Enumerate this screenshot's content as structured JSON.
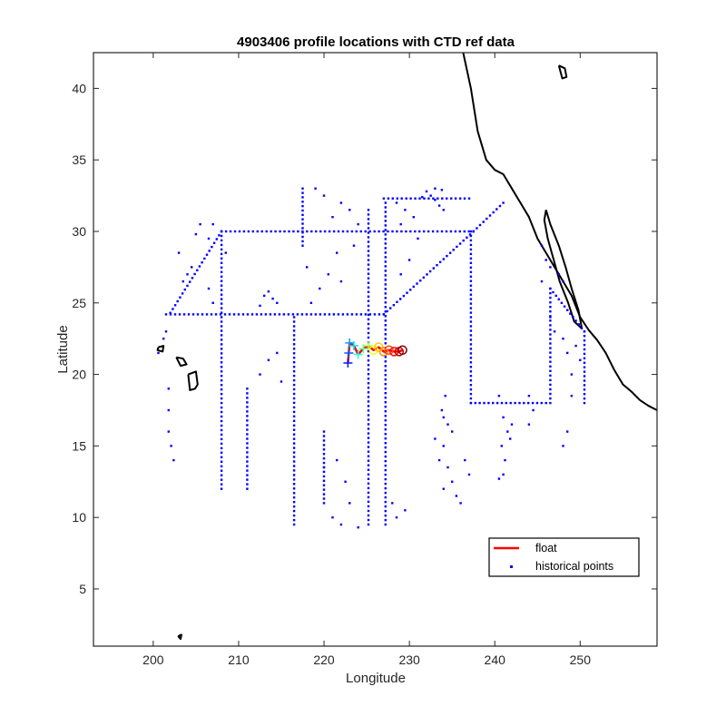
{
  "chart_data": {
    "type": "scatter",
    "title": "4903406 profile locations with CTD ref data",
    "xlabel": "Longitude",
    "ylabel": "Latitude",
    "xlim": [
      193,
      259
    ],
    "ylim": [
      1,
      42.5
    ],
    "xticks": [
      200,
      210,
      220,
      230,
      240,
      250
    ],
    "yticks": [
      5,
      10,
      15,
      20,
      25,
      30,
      35,
      40
    ],
    "grid": false,
    "legend_position": "bottom-right",
    "legend": [
      {
        "label": "float",
        "style": "line",
        "color": "#ff0000"
      },
      {
        "label": "historical points",
        "style": "dot",
        "color": "#0000ff"
      }
    ],
    "colors": {
      "float": "#ff0000",
      "historical": "#0000ff",
      "coast": "#000000"
    },
    "series": [
      {
        "name": "historical points",
        "segments": [
          [
            [
              208,
              30
            ],
            [
              237.5,
              30
            ]
          ],
          [
            [
              201.5,
              24.2
            ],
            [
              227,
              24.2
            ]
          ],
          [
            [
              227,
              32.3
            ],
            [
              237,
              32.3
            ]
          ],
          [
            [
              225.2,
              9.5
            ],
            [
              225.2,
              31.5
            ]
          ],
          [
            [
              227.2,
              9.5
            ],
            [
              227.2,
              32
            ]
          ],
          [
            [
              216.5,
              9.5
            ],
            [
              216.5,
              24
            ]
          ],
          [
            [
              237.2,
              18
            ],
            [
              237.2,
              30
            ]
          ],
          [
            [
              237.2,
              18
            ],
            [
              246,
              18
            ]
          ],
          [
            [
              227,
              24.2
            ],
            [
              237.5,
              30
            ]
          ],
          [
            [
              237.5,
              30
            ],
            [
              241,
              32
            ]
          ],
          [
            [
              208,
              12
            ],
            [
              208,
              30
            ]
          ],
          [
            [
              202,
              24.3
            ],
            [
              208,
              30
            ]
          ],
          [
            [
              211,
              12
            ],
            [
              211,
              19
            ]
          ],
          [
            [
              246.5,
              18
            ],
            [
              246.5,
              26
            ]
          ],
          [
            [
              250.5,
              18
            ],
            [
              250.5,
              23
            ]
          ],
          [
            [
              246.5,
              26
            ],
            [
              250.5,
              23
            ]
          ],
          [
            [
              217.5,
              29
            ],
            [
              217.5,
              33
            ]
          ],
          [
            [
              220,
              11
            ],
            [
              220,
              16
            ]
          ]
        ],
        "points": [
          [
            201.8,
            19
          ],
          [
            201.8,
            17.5
          ],
          [
            201.8,
            16
          ],
          [
            202.1,
            15
          ],
          [
            202.4,
            14
          ],
          [
            201.2,
            22.5
          ],
          [
            201.5,
            23
          ],
          [
            200.6,
            21.5
          ],
          [
            203.5,
            26.5
          ],
          [
            204.5,
            27.5
          ],
          [
            213,
            25.5
          ],
          [
            213.5,
            25.8
          ],
          [
            214,
            25.3
          ],
          [
            214.5,
            25
          ],
          [
            212.5,
            24.8
          ],
          [
            219,
            33
          ],
          [
            220,
            32.5
          ],
          [
            221,
            31
          ],
          [
            222,
            32
          ],
          [
            223,
            31.5
          ],
          [
            224,
            30.5
          ],
          [
            223.5,
            29
          ],
          [
            221.5,
            28.5
          ],
          [
            220.5,
            27
          ],
          [
            219.5,
            26
          ],
          [
            218.5,
            25
          ],
          [
            222,
            26.5
          ],
          [
            218,
            27.5
          ],
          [
            232,
            32.8
          ],
          [
            232.5,
            32.5
          ],
          [
            233,
            32.2
          ],
          [
            233.5,
            31.8
          ],
          [
            234,
            31.5
          ],
          [
            231.5,
            32.4
          ],
          [
            233,
            33
          ],
          [
            233.8,
            32.9
          ],
          [
            230.5,
            31
          ],
          [
            229.5,
            31.5
          ],
          [
            228.5,
            32
          ],
          [
            229,
            30.5
          ],
          [
            231,
            29.5
          ],
          [
            230,
            28
          ],
          [
            229,
            27
          ],
          [
            214.5,
            21.5
          ],
          [
            213.5,
            21
          ],
          [
            212.5,
            20
          ],
          [
            215,
            19.5
          ],
          [
            220,
            13.5
          ],
          [
            221.5,
            14
          ],
          [
            222.5,
            12.5
          ],
          [
            223,
            11
          ],
          [
            221,
            10
          ],
          [
            222,
            9.5
          ],
          [
            224,
            9.3
          ],
          [
            228.5,
            10
          ],
          [
            229.5,
            10.5
          ],
          [
            228,
            11
          ],
          [
            234,
            17
          ],
          [
            234.5,
            16.5
          ],
          [
            235,
            16
          ],
          [
            234,
            15
          ],
          [
            233.5,
            14
          ],
          [
            234.5,
            13.5
          ],
          [
            235,
            12.5
          ],
          [
            234,
            12
          ],
          [
            235.5,
            11.5
          ],
          [
            236,
            11
          ],
          [
            236.5,
            14
          ],
          [
            237,
            13
          ],
          [
            233,
            15.5
          ],
          [
            234.2,
            18.5
          ],
          [
            233.8,
            17.5
          ],
          [
            240.5,
            18.5
          ],
          [
            241,
            17
          ],
          [
            241.5,
            16
          ],
          [
            240.8,
            15
          ],
          [
            241.2,
            14
          ],
          [
            241,
            13
          ],
          [
            240.5,
            12.7
          ],
          [
            241.8,
            15.5
          ],
          [
            242,
            16.5
          ],
          [
            244,
            18.5
          ],
          [
            244.5,
            17.5
          ],
          [
            244,
            16.5
          ],
          [
            248,
            15
          ],
          [
            248.5,
            16
          ],
          [
            249,
            18.5
          ],
          [
            249.5,
            22
          ],
          [
            250,
            21
          ],
          [
            245.5,
            26.5
          ],
          [
            246.5,
            24
          ],
          [
            247,
            23
          ],
          [
            248,
            22.5
          ],
          [
            248.5,
            21.5
          ],
          [
            249,
            20
          ],
          [
            245.5,
            29
          ],
          [
            246,
            28
          ],
          [
            246.5,
            27.5
          ],
          [
            247.5,
            27
          ],
          [
            248,
            26.5
          ],
          [
            203,
            28.5
          ],
          [
            204,
            27
          ],
          [
            206.5,
            29.5
          ],
          [
            207,
            30.5
          ],
          [
            205.5,
            30.5
          ],
          [
            205,
            29.8
          ],
          [
            208.5,
            28.5
          ],
          [
            206.5,
            26
          ],
          [
            207,
            25
          ]
        ]
      },
      {
        "name": "float",
        "points": [
          [
            222.8,
            20.8
          ],
          [
            222.9,
            21.5
          ],
          [
            223,
            22.2
          ],
          [
            223.5,
            22
          ],
          [
            224,
            21.4
          ],
          [
            224.6,
            21.8
          ],
          [
            225.2,
            22
          ],
          [
            225.8,
            21.7
          ],
          [
            226.4,
            21.9
          ],
          [
            227,
            21.6
          ],
          [
            227.6,
            21.7
          ],
          [
            228.2,
            21.6
          ],
          [
            228.8,
            21.6
          ],
          [
            229.2,
            21.7
          ]
        ]
      }
    ],
    "coastline": [
      [
        [
          236.3,
          42.5
        ],
        [
          237.2,
          40
        ],
        [
          238,
          37
        ],
        [
          239,
          35
        ],
        [
          240,
          34.3
        ],
        [
          241,
          34
        ],
        [
          242,
          33
        ],
        [
          243,
          32
        ],
        [
          244,
          31
        ],
        [
          245,
          29.5
        ],
        [
          246,
          28.5
        ],
        [
          247,
          27.5
        ],
        [
          248,
          26.5
        ],
        [
          249,
          25.5
        ],
        [
          250,
          24
        ],
        [
          251,
          23.1
        ],
        [
          252,
          22.4
        ],
        [
          253,
          21.5
        ],
        [
          254,
          20.3
        ],
        [
          255,
          19.3
        ],
        [
          256,
          18.8
        ],
        [
          257,
          18.2
        ],
        [
          258,
          17.8
        ],
        [
          259,
          17.5
        ]
      ],
      [
        [
          246,
          31.5
        ],
        [
          246.5,
          30.5
        ],
        [
          247.5,
          29
        ],
        [
          248.3,
          27.5
        ],
        [
          249,
          26
        ],
        [
          249.8,
          24.5
        ],
        [
          250.2,
          23.2
        ],
        [
          249.3,
          23.7
        ],
        [
          248.6,
          25
        ],
        [
          247.6,
          26.5
        ],
        [
          246.9,
          28
        ],
        [
          246.2,
          29.5
        ],
        [
          245.8,
          30.8
        ],
        [
          246,
          31.5
        ]
      ],
      [
        [
          247.5,
          41.6
        ],
        [
          248.2,
          41.4
        ],
        [
          248.4,
          40.8
        ],
        [
          247.9,
          40.7
        ],
        [
          247.5,
          41.6
        ]
      ],
      [
        [
          200.6,
          21.9
        ],
        [
          201.2,
          22.0
        ],
        [
          201.1,
          21.6
        ],
        [
          200.5,
          21.7
        ],
        [
          200.6,
          21.9
        ]
      ],
      [
        [
          202.7,
          21.2
        ],
        [
          203.5,
          21.1
        ],
        [
          203.9,
          20.7
        ],
        [
          203.2,
          20.6
        ],
        [
          202.7,
          21.2
        ]
      ],
      [
        [
          204.1,
          20.0
        ],
        [
          205.0,
          20.2
        ],
        [
          205.2,
          19.3
        ],
        [
          204.9,
          19.0
        ],
        [
          204.3,
          18.9
        ],
        [
          204.1,
          20.0
        ]
      ],
      [
        [
          202.9,
          1.7
        ],
        [
          203.3,
          1.8
        ],
        [
          203.2,
          1.5
        ],
        [
          202.9,
          1.7
        ]
      ]
    ]
  }
}
